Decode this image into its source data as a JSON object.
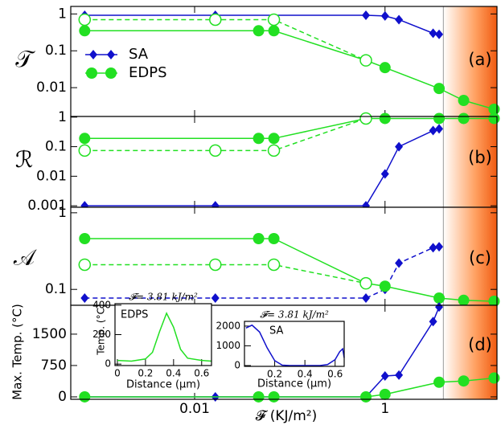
{
  "chart_data": [
    {
      "type": "line",
      "ylabel": "𝒯",
      "xlog": true,
      "ylog": true,
      "xlim": [
        0.0005,
        15
      ],
      "ylim": [
        0.00165,
        1.6
      ],
      "yticks": [
        1,
        0.1,
        0.01
      ],
      "shade_xlim": [
        4.1,
        15
      ],
      "annotation": "(a)",
      "legend": "center left",
      "series": [
        {
          "name": "SA",
          "color": "#1010cc",
          "marker": "diamond",
          "linestyle": "solid",
          "x": [
            0.0007,
            0.0165,
            0.63,
            1,
            1.4,
            3.2,
            3.7
          ],
          "values": [
            0.92,
            0.92,
            0.92,
            0.88,
            0.7,
            0.3,
            0.28
          ]
        },
        {
          "name": "EDPS",
          "color": "#22e022",
          "marker": "circle",
          "linestyle": "solid",
          "x": [
            0.0007,
            0.047,
            0.068,
            0.63,
            1,
            3.7,
            6.7,
            14
          ],
          "values": [
            0.35,
            0.35,
            0.35,
            0.055,
            0.035,
            0.0095,
            0.0045,
            0.0026
          ]
        },
        {
          "color": "#22e022",
          "marker": "open-circle",
          "linestyle": "dashed",
          "x": [
            0.0007,
            0.0165,
            0.068,
            0.63
          ],
          "values": [
            0.7,
            0.7,
            0.7,
            0.055
          ]
        }
      ]
    },
    {
      "type": "line",
      "ylabel": "ℛ",
      "xlog": true,
      "ylog": true,
      "xlim": [
        0.0005,
        15
      ],
      "ylim": [
        0.00089,
        1.05
      ],
      "yticks": [
        1,
        0.1,
        0.01,
        0.001
      ],
      "shade_xlim": [
        4.1,
        15
      ],
      "annotation": "(b)",
      "series": [
        {
          "color": "#1010cc",
          "marker": "diamond",
          "linestyle": "solid",
          "x": [
            0.0007,
            0.0165,
            0.63,
            1,
            1.4,
            3.2,
            3.7
          ],
          "values": [
            0.001,
            0.001,
            0.001,
            0.012,
            0.1,
            0.35,
            0.4
          ]
        },
        {
          "color": "#22e022",
          "marker": "circle",
          "linestyle": "solid",
          "x": [
            0.0007,
            0.047,
            0.068,
            0.63,
            1,
            3.7,
            6.7,
            14
          ],
          "values": [
            0.19,
            0.19,
            0.19,
            0.9,
            0.9,
            0.9,
            0.9,
            0.9
          ]
        },
        {
          "color": "#22e022",
          "marker": "open-circle",
          "linestyle": "dashed",
          "x": [
            0.0007,
            0.0165,
            0.068,
            0.63
          ],
          "values": [
            0.074,
            0.074,
            0.074,
            0.9
          ]
        }
      ]
    },
    {
      "type": "line",
      "ylabel": "𝒜",
      "xlog": true,
      "ylog": true,
      "xlim": [
        0.0005,
        15
      ],
      "ylim": [
        0.062,
        1.18
      ],
      "yticks": [
        1,
        0.1
      ],
      "shade_xlim": [
        4.1,
        15
      ],
      "annotation": "(c)",
      "series": [
        {
          "color": "#1010cc",
          "marker": "diamond",
          "linestyle": "dashed",
          "x": [
            0.0007,
            0.0165,
            0.63,
            1,
            1.4,
            3.2,
            3.7
          ],
          "values": [
            0.077,
            0.077,
            0.077,
            0.1,
            0.22,
            0.35,
            0.36
          ]
        },
        {
          "color": "#22e022",
          "marker": "circle",
          "linestyle": "solid",
          "x": [
            0.0007,
            0.047,
            0.068,
            0.63,
            1,
            3.7,
            6.7,
            14
          ],
          "values": [
            0.46,
            0.46,
            0.46,
            0.12,
            0.11,
            0.077,
            0.072,
            0.07
          ]
        },
        {
          "color": "#22e022",
          "marker": "open-circle",
          "linestyle": "dashed",
          "x": [
            0.0007,
            0.0165,
            0.068,
            0.63
          ],
          "values": [
            0.21,
            0.21,
            0.21,
            0.12
          ]
        }
      ]
    },
    {
      "type": "line",
      "ylabel": "Max. Temp. (°C)",
      "xlabel": "𝓕 (KJ/m²)",
      "xlog": true,
      "xlim": [
        0.0005,
        15
      ],
      "ylim": [
        -58,
        2190
      ],
      "yticks": [
        0,
        750,
        1500
      ],
      "xticks": [
        0.01,
        1
      ],
      "shade_xlim": [
        4.1,
        15
      ],
      "annotation": "(d)",
      "series": [
        {
          "color": "#1010cc",
          "marker": "diamond",
          "linestyle": "solid",
          "x": [
            0.0007,
            0.0165,
            0.63,
            1,
            1.4,
            3.2,
            3.7
          ],
          "values": [
            0,
            0,
            0,
            500,
            520,
            1800,
            2150
          ]
        },
        {
          "color": "#22e022",
          "marker": "circle",
          "linestyle": "solid",
          "x": [
            0.0007,
            0.047,
            0.068,
            0.63,
            1,
            3.7,
            6.7,
            14
          ],
          "values": [
            0,
            0,
            0,
            0,
            60,
            350,
            380,
            450
          ]
        }
      ]
    },
    {
      "type": "line",
      "title": "𝓕= 3.81 kJ/m²",
      "annotation": "EDPS",
      "xlabel": "Distance (µm)",
      "ylabel": "Temp. (°C)",
      "xlim": [
        -0.017,
        0.67
      ],
      "ylim": [
        -10,
        410
      ],
      "xticks": [
        0,
        0.2,
        0.4,
        0.6
      ],
      "yticks": [
        0,
        200,
        400
      ],
      "series": [
        {
          "color": "#22e022",
          "linestyle": "solid",
          "x": [
            0,
            0.1,
            0.2,
            0.25,
            0.3,
            0.35,
            0.4,
            0.45,
            0.5,
            0.6,
            0.67
          ],
          "values": [
            25,
            20,
            35,
            80,
            220,
            345,
            250,
            100,
            40,
            25,
            20
          ]
        }
      ]
    },
    {
      "type": "line",
      "title": "𝓕= 3.81 kJ/m²",
      "annotation": "SA",
      "xlabel": "Distance (µm)",
      "xlim": [
        0,
        0.66
      ],
      "ylim": [
        -40,
        2240
      ],
      "xticks": [
        0.2,
        0.4,
        0.6
      ],
      "yticks": [
        0,
        1000,
        2000
      ],
      "series": [
        {
          "color": "#1010cc",
          "linestyle": "solid",
          "x": [
            0.01,
            0.05,
            0.1,
            0.15,
            0.2,
            0.25,
            0.3,
            0.5,
            0.55,
            0.6,
            0.63,
            0.65,
            0.66
          ],
          "values": [
            1900,
            2050,
            1700,
            900,
            250,
            20,
            0,
            0,
            50,
            300,
            700,
            850,
            400
          ]
        }
      ]
    }
  ]
}
